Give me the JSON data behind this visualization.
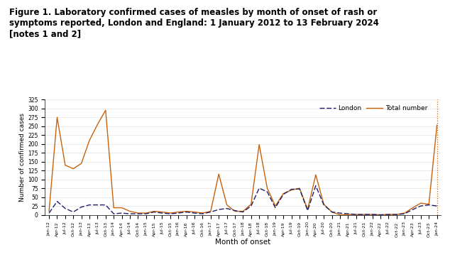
{
  "title_line1": "Figure 1. Laboratory confirmed cases of measles by month of onset of rash or",
  "title_line2": "symptoms reported, London and England: 1 January 2012 to 13 February 2024",
  "title_line3": "[notes 1 and 2]",
  "xlabel": "Month of onset",
  "ylabel": "Number of confirmed cases",
  "ylim": [
    0,
    325
  ],
  "yticks": [
    0,
    25,
    50,
    75,
    100,
    125,
    150,
    175,
    200,
    225,
    250,
    275,
    300,
    325
  ],
  "london_color": "#1f1f6b",
  "total_color": "#c8620a",
  "background_color": "#ffffff",
  "months": [
    "Jan-12",
    "Apr-12",
    "Jul-12",
    "Oct-12",
    "Jan-13",
    "Apr-13",
    "Jul-13",
    "Oct-13",
    "Jan-14",
    "Apr-14",
    "Jul-14",
    "Oct-14",
    "Jan-15",
    "Apr-15",
    "Jul-15",
    "Oct-15",
    "Jan-16",
    "Apr-16",
    "Jul-16",
    "Oct-16",
    "Jan-17",
    "Apr-17",
    "Jul-17",
    "Oct-17",
    "Jan-18",
    "Apr-18",
    "Jul-18",
    "Oct-18",
    "Jan-19",
    "Apr-19",
    "Jul-19",
    "Oct-19",
    "Jan-20",
    "Apr-20",
    "Jul-20",
    "Oct-20",
    "Jan-21",
    "Apr-21",
    "Jul-21",
    "Oct-21",
    "Jan-22",
    "Apr-22",
    "Jul-22",
    "Oct-22",
    "Jan-23",
    "Apr-23",
    "Jul-23",
    "Oct-23",
    "Jan-24"
  ],
  "total_values": [
    10,
    275,
    140,
    130,
    145,
    210,
    255,
    295,
    20,
    20,
    10,
    5,
    5,
    10,
    8,
    5,
    8,
    10,
    8,
    5,
    10,
    115,
    28,
    10,
    10,
    30,
    198,
    75,
    25,
    60,
    70,
    75,
    15,
    113,
    30,
    8,
    0,
    1,
    1,
    1,
    1,
    0,
    1,
    1,
    5,
    20,
    33,
    30,
    253
  ],
  "london_values": [
    5,
    38,
    18,
    8,
    22,
    28,
    28,
    28,
    3,
    5,
    3,
    3,
    3,
    8,
    5,
    3,
    5,
    8,
    5,
    3,
    8,
    15,
    18,
    12,
    8,
    25,
    75,
    65,
    20,
    58,
    72,
    73,
    12,
    82,
    28,
    8,
    5,
    3,
    1,
    1,
    1,
    0,
    1,
    1,
    3,
    15,
    25,
    28,
    25
  ],
  "dotted_line_index": 48
}
